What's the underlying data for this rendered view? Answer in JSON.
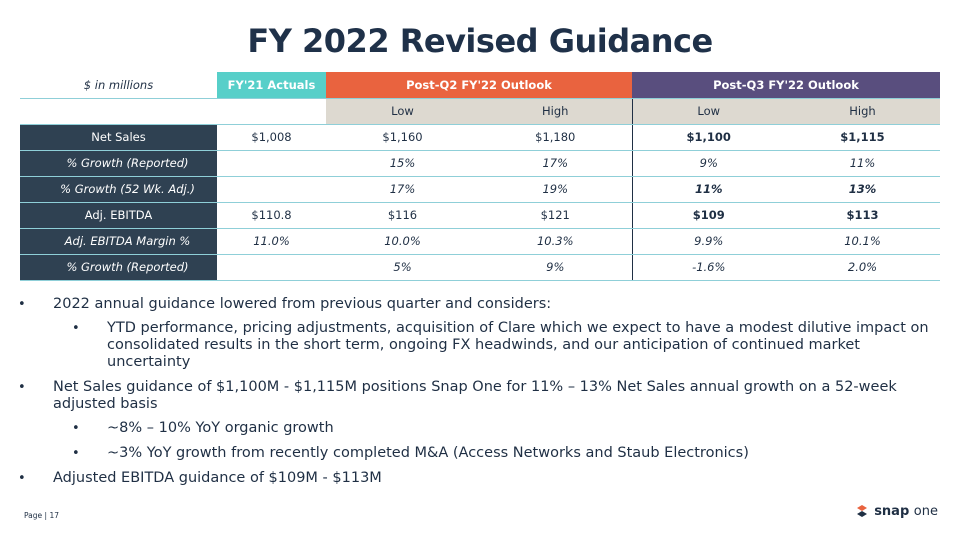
{
  "title": "FY 2022 Revised Guidance",
  "table": {
    "unit_label": "$ in millions",
    "groups": {
      "actuals": "FY'21 Actuals",
      "q2": "Post-Q2 FY'22 Outlook",
      "q3": "Post-Q3 FY'22 Outlook"
    },
    "sub": {
      "low": "Low",
      "high": "High"
    },
    "rows": [
      {
        "label": "Net Sales",
        "a": "$1,008",
        "q2l": "$1,160",
        "q2h": "$1,180",
        "q3l": "$1,100",
        "q3h": "$1,115"
      },
      {
        "label": "% Growth (Reported)",
        "a": "",
        "q2l": "15%",
        "q2h": "17%",
        "q3l": "9%",
        "q3h": "11%"
      },
      {
        "label": "% Growth (52 Wk. Adj.)",
        "a": "",
        "q2l": "17%",
        "q2h": "19%",
        "q3l": "11%",
        "q3h": "13%"
      },
      {
        "label": "Adj. EBITDA",
        "a": "$110.8",
        "q2l": "$116",
        "q2h": "$121",
        "q3l": "$109",
        "q3h": "$113"
      },
      {
        "label": "Adj. EBITDA Margin %",
        "a": "11.0%",
        "q2l": "10.0%",
        "q2h": "10.3%",
        "q3l": "9.9%",
        "q3h": "10.1%"
      },
      {
        "label": "% Growth (Reported)",
        "a": "",
        "q2l": "5%",
        "q2h": "9%",
        "q3l": "-1.6%",
        "q3h": "2.0%"
      }
    ]
  },
  "bullets": [
    "2022 annual guidance lowered from previous quarter and considers:",
    "YTD performance, pricing adjustments, acquisition of Clare which we expect to have a modest dilutive impact on consolidated results in the short term, ongoing FX headwinds, and our anticipation of continued market uncertainty",
    "Net Sales guidance of $1,100M - $1,115M positions Snap One for 11% – 13% Net Sales annual growth on a 52-week adjusted basis",
    "~8% – 10% YoY organic growth",
    "~3% YoY growth from recently completed M&A (Access Networks and Staub Electronics)",
    "Adjusted EBITDA guidance of $109M - $113M"
  ],
  "bullet_glyph": "•",
  "footer": {
    "page": "Page  |  17",
    "logo_snap": "snap",
    "logo_one": "one",
    "logo_icon": "snap-one-logo-icon"
  },
  "colors": {
    "teal": "#57cfc9",
    "orange": "#e9633f",
    "purple": "#594e7e",
    "navy": "#2f4152",
    "grey": "#ddd9d0"
  }
}
